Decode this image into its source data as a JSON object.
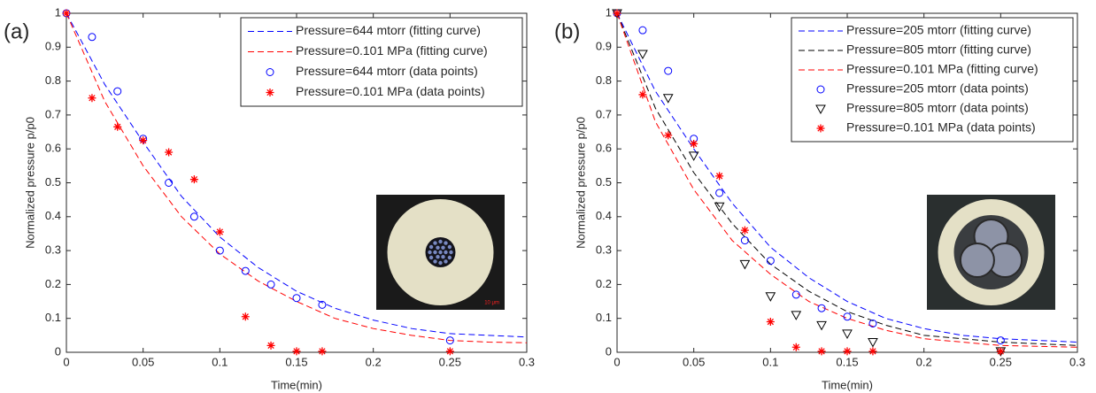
{
  "chart_data": [
    {
      "type": "line",
      "panel_label": "(a)",
      "xlabel": "Time(min)",
      "ylabel": "Normalized pressure p/p0",
      "xlim": [
        0,
        0.3
      ],
      "xticks": [
        0,
        0.05,
        0.1,
        0.15,
        0.2,
        0.25,
        0.3
      ],
      "ylim": [
        0,
        1
      ],
      "yticks": [
        0,
        0.1,
        0.2,
        0.3,
        0.4,
        0.5,
        0.6,
        0.7,
        0.8,
        0.9,
        1
      ],
      "legend": "upper right",
      "inset_label": "10 μm",
      "series": [
        {
          "name": "Pressure=644 mtorr (fitting curve)",
          "color": "#0000ff",
          "style": "dashed",
          "x": [
            0,
            0.025,
            0.05,
            0.075,
            0.1,
            0.125,
            0.15,
            0.175,
            0.2,
            0.225,
            0.25,
            0.275,
            0.3
          ],
          "values": [
            1,
            0.79,
            0.62,
            0.46,
            0.34,
            0.25,
            0.18,
            0.13,
            0.095,
            0.07,
            0.055,
            0.05,
            0.045
          ]
        },
        {
          "name": "Pressure=0.101 MPa (fitting curve)",
          "color": "#ff0000",
          "style": "dashed",
          "x": [
            0,
            0.025,
            0.05,
            0.075,
            0.1,
            0.125,
            0.15,
            0.175,
            0.2,
            0.225,
            0.25,
            0.275,
            0.3
          ],
          "values": [
            1,
            0.74,
            0.55,
            0.4,
            0.29,
            0.21,
            0.15,
            0.1,
            0.07,
            0.05,
            0.035,
            0.03,
            0.028
          ]
        },
        {
          "name": "Pressure=644 mtorr (data points)",
          "color": "#0000ff",
          "marker": "circle",
          "x": [
            0,
            0.0167,
            0.0333,
            0.05,
            0.0667,
            0.0833,
            0.1,
            0.1167,
            0.1333,
            0.15,
            0.1667,
            0.25
          ],
          "values": [
            1,
            0.93,
            0.77,
            0.63,
            0.5,
            0.4,
            0.3,
            0.24,
            0.2,
            0.16,
            0.14,
            0.035
          ]
        },
        {
          "name": "Pressure=0.101 MPa (data points)",
          "color": "#ff0000",
          "marker": "star",
          "x": [
            0,
            0.0167,
            0.0333,
            0.05,
            0.0667,
            0.0833,
            0.1,
            0.1167,
            0.1333,
            0.15,
            0.1667,
            0.25
          ],
          "values": [
            1,
            0.75,
            0.665,
            0.625,
            0.59,
            0.51,
            0.355,
            0.105,
            0.02,
            0.003,
            0.003,
            0.003
          ]
        }
      ]
    },
    {
      "type": "line",
      "panel_label": "(b)",
      "xlabel": "Time(min)",
      "ylabel": "Normalized pressure p/p0",
      "xlim": [
        0,
        0.3
      ],
      "xticks": [
        0,
        0.05,
        0.1,
        0.15,
        0.2,
        0.25,
        0.3
      ],
      "ylim": [
        0,
        1
      ],
      "yticks": [
        0,
        0.1,
        0.2,
        0.3,
        0.4,
        0.5,
        0.6,
        0.7,
        0.8,
        0.9,
        1
      ],
      "legend": "upper right",
      "series": [
        {
          "name": "Pressure=205 mtorr (fitting curve)",
          "color": "#0000ff",
          "style": "dashed",
          "x": [
            0,
            0.025,
            0.05,
            0.075,
            0.1,
            0.125,
            0.15,
            0.175,
            0.2,
            0.225,
            0.25,
            0.3
          ],
          "values": [
            1,
            0.77,
            0.6,
            0.44,
            0.31,
            0.22,
            0.15,
            0.1,
            0.07,
            0.05,
            0.04,
            0.03
          ]
        },
        {
          "name": "Pressure=805 mtorr (fitting curve)",
          "color": "#000000",
          "style": "dashed",
          "x": [
            0,
            0.025,
            0.05,
            0.075,
            0.1,
            0.125,
            0.15,
            0.175,
            0.2,
            0.25,
            0.3
          ],
          "values": [
            1,
            0.72,
            0.53,
            0.38,
            0.26,
            0.18,
            0.12,
            0.08,
            0.05,
            0.03,
            0.02
          ]
        },
        {
          "name": "Pressure=0.101 MPa (fitting curve)",
          "color": "#ff0000",
          "style": "dashed",
          "x": [
            0,
            0.025,
            0.05,
            0.075,
            0.1,
            0.125,
            0.15,
            0.175,
            0.2,
            0.25,
            0.3
          ],
          "values": [
            1,
            0.68,
            0.48,
            0.33,
            0.23,
            0.15,
            0.1,
            0.065,
            0.04,
            0.02,
            0.015
          ]
        },
        {
          "name": "Pressure=205 mtorr (data points)",
          "color": "#0000ff",
          "marker": "circle",
          "x": [
            0,
            0.0167,
            0.0333,
            0.05,
            0.0667,
            0.0833,
            0.1,
            0.1167,
            0.1333,
            0.15,
            0.1667,
            0.25
          ],
          "values": [
            1,
            0.95,
            0.83,
            0.63,
            0.47,
            0.33,
            0.27,
            0.17,
            0.13,
            0.105,
            0.085,
            0.035
          ]
        },
        {
          "name": "Pressure=805 mtorr (data points)",
          "color": "#000000",
          "marker": "triangle",
          "x": [
            0,
            0.0167,
            0.0333,
            0.05,
            0.0667,
            0.0833,
            0.1,
            0.1167,
            0.1333,
            0.15,
            0.1667,
            0.25
          ],
          "values": [
            1,
            0.88,
            0.75,
            0.58,
            0.43,
            0.26,
            0.165,
            0.11,
            0.08,
            0.055,
            0.03,
            0.003
          ]
        },
        {
          "name": "Pressure=0.101 MPa (data points)",
          "color": "#ff0000",
          "marker": "star",
          "x": [
            0,
            0.0167,
            0.0333,
            0.05,
            0.0667,
            0.0833,
            0.1,
            0.1167,
            0.1333,
            0.15,
            0.1667,
            0.25
          ],
          "values": [
            1,
            0.76,
            0.64,
            0.615,
            0.52,
            0.36,
            0.09,
            0.015,
            0.003,
            0.003,
            0.003,
            0.003
          ]
        }
      ]
    }
  ]
}
